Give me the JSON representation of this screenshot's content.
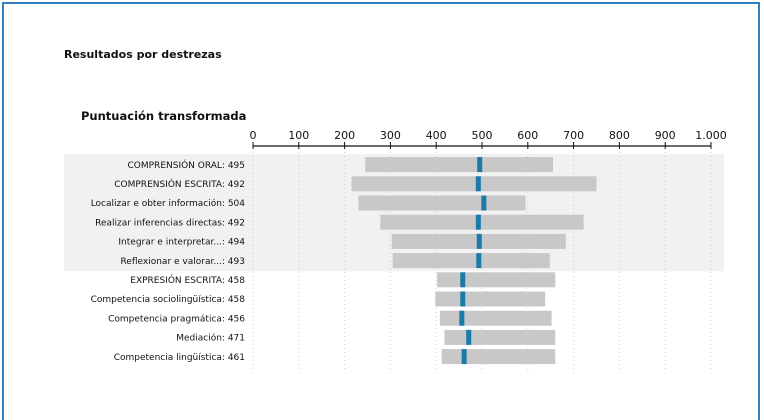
{
  "section": {
    "title": "Resultados por destrezas"
  },
  "chart_title": "Puntuación transformada",
  "colors": {
    "bar": "#c8c8c8",
    "marker": "#1a7aa8",
    "band": "#f1f1f1",
    "frame": "#2f7fc1",
    "axis": "#111111",
    "grid": "#cfcfcf"
  },
  "chart_data": {
    "type": "bar",
    "title": "Puntuación transformada",
    "xlim": [
      0,
      1000
    ],
    "x_ticks": [
      "0",
      "100",
      "200",
      "300",
      "400",
      "500",
      "600",
      "700",
      "800",
      "900",
      "1.000"
    ],
    "x_tick_values": [
      0,
      100,
      200,
      300,
      400,
      500,
      600,
      700,
      800,
      900,
      1000
    ],
    "grid": "vertical dotted",
    "rows": [
      {
        "label": "COMPRENSIÓN ORAL: 495",
        "score": 495,
        "range": [
          245,
          655
        ],
        "group": "comprension",
        "header": true
      },
      {
        "label": "COMPRENSIÓN ESCRITA: 492",
        "score": 492,
        "range": [
          215,
          750
        ],
        "group": "comprension",
        "header": true
      },
      {
        "label": "Localizar e obter información: 504",
        "score": 504,
        "range": [
          230,
          595
        ],
        "group": "comprension",
        "header": false
      },
      {
        "label": "Realizar inferencias directas: 492",
        "score": 492,
        "range": [
          278,
          722
        ],
        "group": "comprension",
        "header": false
      },
      {
        "label": "Integrar e interpretar...: 494",
        "score": 494,
        "range": [
          303,
          683
        ],
        "group": "comprension",
        "header": false
      },
      {
        "label": "Reflexionar e valorar...: 493",
        "score": 493,
        "range": [
          305,
          648
        ],
        "group": "comprension",
        "header": false
      },
      {
        "label": "EXPRESIÓN ESCRITA: 458",
        "score": 458,
        "range": [
          402,
          660
        ],
        "group": "expresion",
        "header": true
      },
      {
        "label": "Competencia sociolingüística: 458",
        "score": 458,
        "range": [
          398,
          638
        ],
        "group": "expresion",
        "header": false
      },
      {
        "label": "Competencia pragmática: 456",
        "score": 456,
        "range": [
          408,
          652
        ],
        "group": "expresion",
        "header": false
      },
      {
        "label": "Mediación: 471",
        "score": 471,
        "range": [
          418,
          660
        ],
        "group": "expresion",
        "header": false
      },
      {
        "label": "Competencia lingüística: 461",
        "score": 461,
        "range": [
          412,
          660
        ],
        "group": "expresion",
        "header": false
      }
    ]
  }
}
